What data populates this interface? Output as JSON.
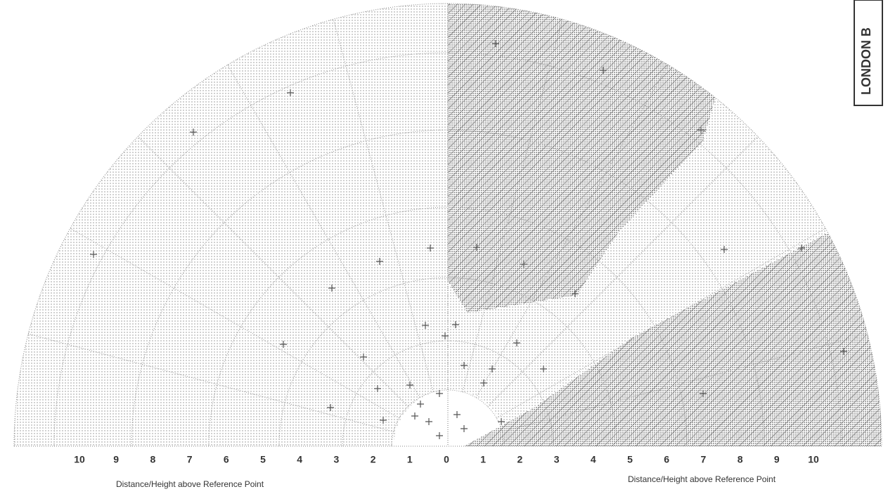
{
  "axis_labels": [
    "10",
    "9",
    "8",
    "7",
    "6",
    "5",
    "4",
    "3",
    "2",
    "1",
    "0",
    "1",
    "2",
    "3",
    "4",
    "5",
    "6",
    "7",
    "8",
    "9",
    "10"
  ],
  "captions": {
    "left": "Distance/Height above Reference Point",
    "right": "Distance/Height above Reference Point"
  },
  "stamp": "LONDON B"
}
